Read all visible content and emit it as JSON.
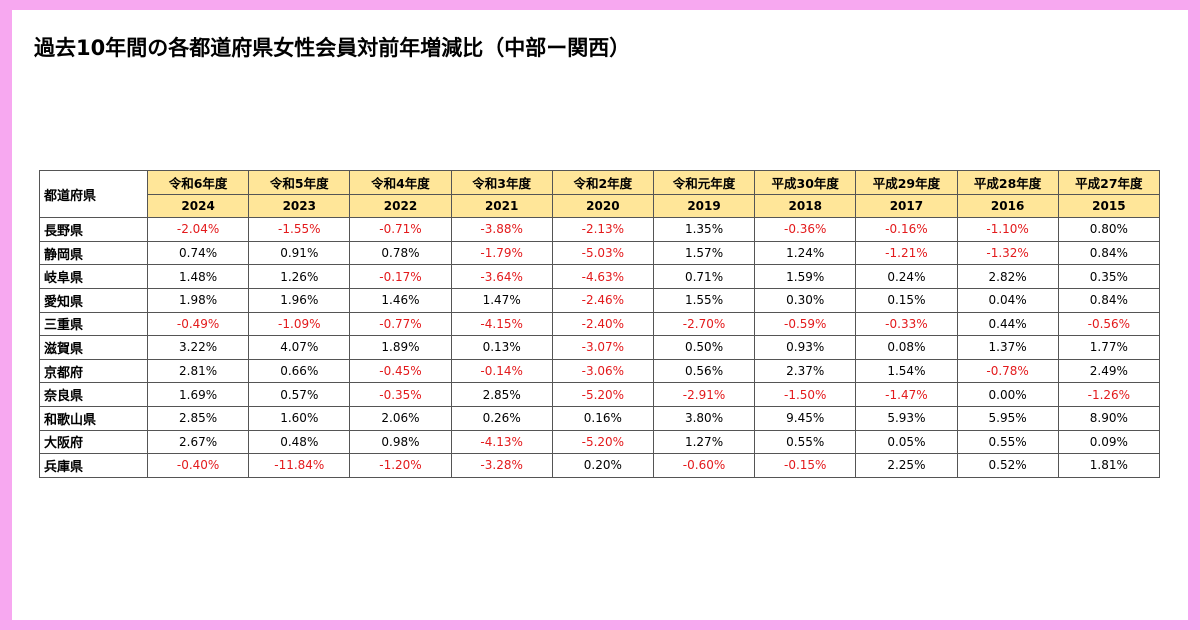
{
  "title": "過去10年間の各都道府県女性会員対前年増減比（中部ー関西）",
  "table": {
    "corner_label": "都道府県",
    "era_labels": [
      "令和6年度",
      "令和5年度",
      "令和4年度",
      "令和3年度",
      "令和2年度",
      "令和元年度",
      "平成30年度",
      "平成29年度",
      "平成28年度",
      "平成27年度"
    ],
    "years": [
      "2024",
      "2023",
      "2022",
      "2021",
      "2020",
      "2019",
      "2018",
      "2017",
      "2016",
      "2015"
    ],
    "rows": [
      {
        "pref": "長野県",
        "values": [
          "-2.04%",
          "-1.55%",
          "-0.71%",
          "-3.88%",
          "-2.13%",
          "1.35%",
          "-0.36%",
          "-0.16%",
          "-1.10%",
          "0.80%"
        ]
      },
      {
        "pref": "静岡県",
        "values": [
          "0.74%",
          "0.91%",
          "0.78%",
          "-1.79%",
          "-5.03%",
          "1.57%",
          "1.24%",
          "-1.21%",
          "-1.32%",
          "0.84%"
        ]
      },
      {
        "pref": "岐阜県",
        "values": [
          "1.48%",
          "1.26%",
          "-0.17%",
          "-3.64%",
          "-4.63%",
          "0.71%",
          "1.59%",
          "0.24%",
          "2.82%",
          "0.35%"
        ]
      },
      {
        "pref": "愛知県",
        "values": [
          "1.98%",
          "1.96%",
          "1.46%",
          "1.47%",
          "-2.46%",
          "1.55%",
          "0.30%",
          "0.15%",
          "0.04%",
          "0.84%"
        ]
      },
      {
        "pref": "三重県",
        "values": [
          "-0.49%",
          "-1.09%",
          "-0.77%",
          "-4.15%",
          "-2.40%",
          "-2.70%",
          "-0.59%",
          "-0.33%",
          "0.44%",
          "-0.56%"
        ]
      },
      {
        "pref": "滋賀県",
        "values": [
          "3.22%",
          "4.07%",
          "1.89%",
          "0.13%",
          "-3.07%",
          "0.50%",
          "0.93%",
          "0.08%",
          "1.37%",
          "1.77%"
        ]
      },
      {
        "pref": "京都府",
        "values": [
          "2.81%",
          "0.66%",
          "-0.45%",
          "-0.14%",
          "-3.06%",
          "0.56%",
          "2.37%",
          "1.54%",
          "-0.78%",
          "2.49%"
        ]
      },
      {
        "pref": "奈良県",
        "values": [
          "1.69%",
          "0.57%",
          "-0.35%",
          "2.85%",
          "-5.20%",
          "-2.91%",
          "-1.50%",
          "-1.47%",
          "0.00%",
          "-1.26%"
        ]
      },
      {
        "pref": "和歌山県",
        "values": [
          "2.85%",
          "1.60%",
          "2.06%",
          "0.26%",
          "0.16%",
          "3.80%",
          "9.45%",
          "5.93%",
          "5.95%",
          "8.90%"
        ]
      },
      {
        "pref": "大阪府",
        "values": [
          "2.67%",
          "0.48%",
          "0.98%",
          "-4.13%",
          "-5.20%",
          "1.27%",
          "0.55%",
          "0.05%",
          "0.55%",
          "0.09%"
        ]
      },
      {
        "pref": "兵庫県",
        "values": [
          "-0.40%",
          "-11.84%",
          "-1.20%",
          "-3.28%",
          "0.20%",
          "-0.60%",
          "-0.15%",
          "2.25%",
          "0.52%",
          "1.81%"
        ]
      }
    ]
  },
  "colors": {
    "page_border": "#f7a8f0",
    "header_fill": "#ffe699",
    "negative_text": "#e31a1c",
    "grid_line": "#555555"
  }
}
